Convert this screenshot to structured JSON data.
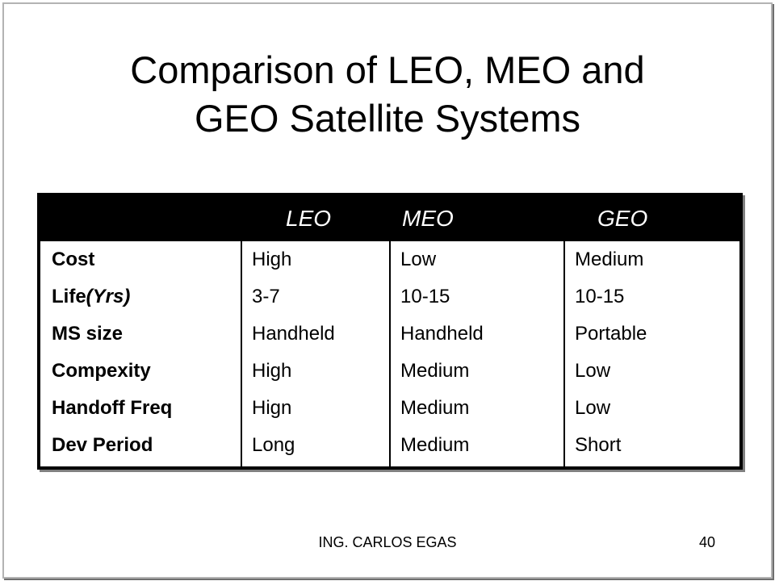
{
  "title": {
    "line1": "Comparison of LEO, MEO and",
    "line2": "GEO Satellite Systems"
  },
  "table": {
    "header": [
      "",
      "LEO",
      "MEO",
      "GEO"
    ],
    "rows": [
      {
        "label": "Cost",
        "leo": "High",
        "meo": "Low",
        "geo": "Medium"
      },
      {
        "label": "Life",
        "label_italic": "(Yrs)",
        "leo": "3-7",
        "meo": "10-15",
        "geo": "10-15"
      },
      {
        "label": "MS size",
        "leo": "Handheld",
        "meo": "Handheld",
        "geo": "Portable"
      },
      {
        "label": "Compexity",
        "leo": "High",
        "meo": "Medium",
        "geo": "Low"
      },
      {
        "label": "Handoff Freq",
        "leo": "Hign",
        "meo": "Medium",
        "geo": "Low"
      },
      {
        "label": "Dev Period",
        "leo": "Long",
        "meo": "Medium",
        "geo": "Short"
      }
    ]
  },
  "footer": {
    "author": "ING. CARLOS EGAS",
    "page": "40"
  }
}
